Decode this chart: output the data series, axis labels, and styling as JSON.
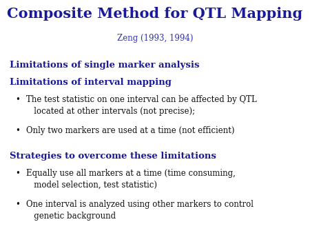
{
  "title": "Composite Method for QTL Mapping",
  "subtitle": "Zeng (1993, 1994)",
  "title_color": "#1a1a99",
  "subtitle_color": "#3333aa",
  "heading_color": "#1a1a99",
  "body_color": "#111111",
  "background_color": "#ffffff",
  "title_fontsize": 15,
  "subtitle_fontsize": 8.5,
  "heading_fontsize": 9.5,
  "body_fontsize": 8.5,
  "headings": [
    "Limitations of single marker analysis",
    "Limitations of interval mapping"
  ],
  "bullets_section1_line1": [
    "The test statistic on one interval can be affected by QTL",
    "Only two markers are used at a time (not efficient)"
  ],
  "bullets_section1_line2": [
    "   located at other intervals (not precise);",
    ""
  ],
  "heading2": "Strategies to overcome these limitations",
  "bullets_section2_line1": [
    "Equally use all markers at a time (time consuming,",
    "One interval is analyzed using other markers to control"
  ],
  "bullets_section2_line2": [
    "   model selection, test statistic)",
    "   genetic background"
  ]
}
